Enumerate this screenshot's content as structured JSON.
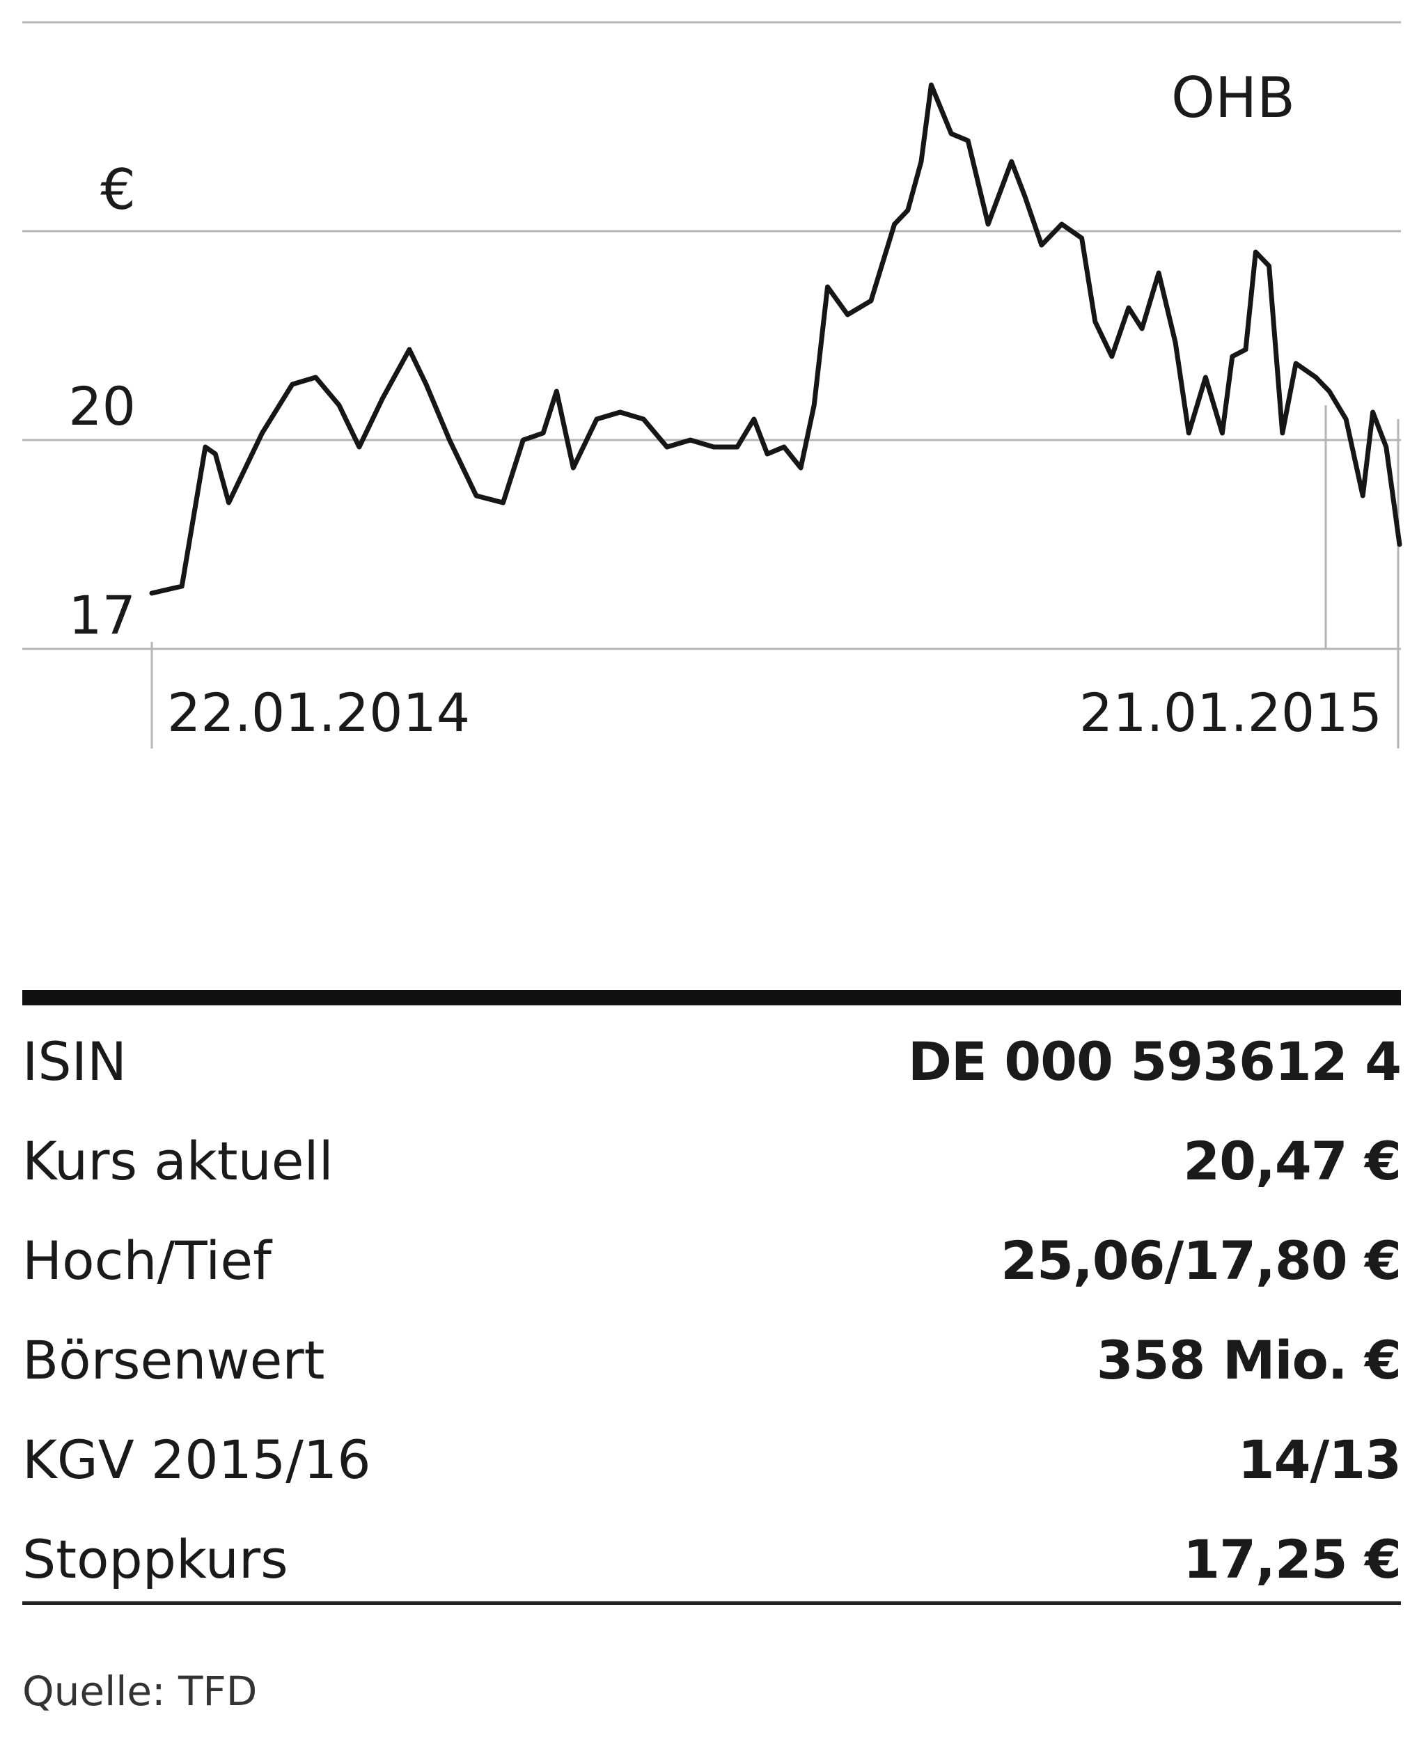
{
  "chart_data": {
    "type": "line",
    "title": "OHB",
    "unit": "€",
    "y_ticks": [
      "17",
      "20"
    ],
    "ylim": [
      17,
      26
    ],
    "x_labels": [
      "22.01.2014",
      "21.01.2015"
    ],
    "xlim": [
      "2014-01-22",
      "2015-01-30"
    ],
    "series": [
      {
        "values": [
          [
            "2014-01-22",
            17.8
          ],
          [
            "2014-01-31",
            17.9
          ],
          [
            "2014-02-07",
            19.9
          ],
          [
            "2014-02-10",
            19.8
          ],
          [
            "2014-02-14",
            19.1
          ],
          [
            "2014-02-19",
            19.6
          ],
          [
            "2014-02-24",
            20.1
          ],
          [
            "2014-03-05",
            20.8
          ],
          [
            "2014-03-12",
            20.9
          ],
          [
            "2014-03-19",
            20.5
          ],
          [
            "2014-03-25",
            19.9
          ],
          [
            "2014-04-01",
            20.6
          ],
          [
            "2014-04-09",
            21.3
          ],
          [
            "2014-04-14",
            20.8
          ],
          [
            "2014-04-21",
            20.0
          ],
          [
            "2014-04-29",
            19.2
          ],
          [
            "2014-05-07",
            19.1
          ],
          [
            "2014-05-13",
            20.0
          ],
          [
            "2014-05-19",
            20.1
          ],
          [
            "2014-05-23",
            20.7
          ],
          [
            "2014-05-28",
            19.6
          ],
          [
            "2014-06-04",
            20.3
          ],
          [
            "2014-06-11",
            20.4
          ],
          [
            "2014-06-18",
            20.3
          ],
          [
            "2014-06-25",
            19.9
          ],
          [
            "2014-07-02",
            20.0
          ],
          [
            "2014-07-09",
            19.9
          ],
          [
            "2014-07-16",
            19.9
          ],
          [
            "2014-07-21",
            20.3
          ],
          [
            "2014-07-25",
            19.8
          ],
          [
            "2014-07-30",
            19.9
          ],
          [
            "2014-08-04",
            19.6
          ],
          [
            "2014-08-08",
            20.5
          ],
          [
            "2014-08-12",
            22.2
          ],
          [
            "2014-08-18",
            21.8
          ],
          [
            "2014-08-25",
            22.0
          ],
          [
            "2014-09-01",
            23.1
          ],
          [
            "2014-09-05",
            23.3
          ],
          [
            "2014-09-09",
            24.0
          ],
          [
            "2014-09-12",
            25.1
          ],
          [
            "2014-09-18",
            24.4
          ],
          [
            "2014-09-23",
            24.3
          ],
          [
            "2014-09-29",
            23.1
          ],
          [
            "2014-10-06",
            24.0
          ],
          [
            "2014-10-10",
            23.5
          ],
          [
            "2014-10-15",
            22.8
          ],
          [
            "2014-10-21",
            23.1
          ],
          [
            "2014-10-27",
            22.9
          ],
          [
            "2014-10-31",
            21.7
          ],
          [
            "2014-11-05",
            21.2
          ],
          [
            "2014-11-10",
            21.9
          ],
          [
            "2014-11-14",
            21.6
          ],
          [
            "2014-11-19",
            22.4
          ],
          [
            "2014-11-24",
            21.4
          ],
          [
            "2014-11-28",
            20.1
          ],
          [
            "2014-12-03",
            20.9
          ],
          [
            "2014-12-08",
            20.1
          ],
          [
            "2014-12-11",
            21.2
          ],
          [
            "2014-12-15",
            21.3
          ],
          [
            "2014-12-18",
            22.7
          ],
          [
            "2014-12-22",
            22.5
          ],
          [
            "2014-12-26",
            20.1
          ],
          [
            "2014-12-30",
            21.1
          ],
          [
            "2015-01-05",
            20.9
          ],
          [
            "2015-01-09",
            20.7
          ],
          [
            "2015-01-14",
            20.3
          ],
          [
            "2015-01-19",
            19.2
          ],
          [
            "2015-01-22",
            20.4
          ],
          [
            "2015-01-26",
            19.9
          ],
          [
            "2015-01-30",
            18.5
          ]
        ]
      }
    ]
  },
  "table": {
    "rows": [
      {
        "label": "ISIN",
        "value": "DE 000 593612 4"
      },
      {
        "label": "Kurs aktuell",
        "value": "20,47 €"
      },
      {
        "label": "Hoch/Tief",
        "value": "25,06/17,80 €"
      },
      {
        "label": "Börsenwert",
        "value": "358 Mio. €"
      },
      {
        "label": "KGV 2015/16",
        "value": "14/13"
      },
      {
        "label": "Stoppkurs",
        "value": "17,25 €"
      }
    ]
  },
  "source": "Quelle: TFD"
}
